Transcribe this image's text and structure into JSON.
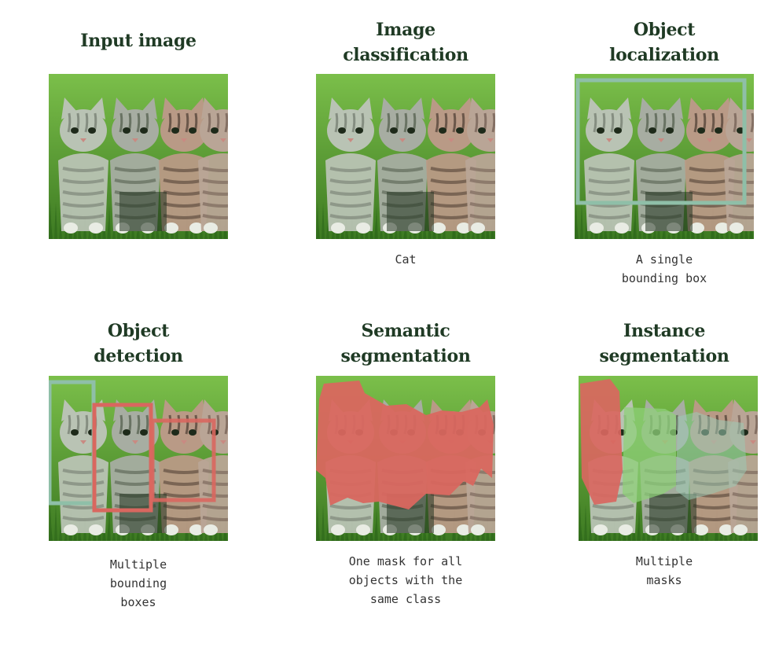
{
  "panels": [
    {
      "key": "input",
      "title_lines": [
        "Input image"
      ],
      "caption_lines": []
    },
    {
      "key": "classification",
      "title_lines": [
        "Image",
        "classification"
      ],
      "caption_lines": [
        "Cat"
      ]
    },
    {
      "key": "localization",
      "title_lines": [
        "Object",
        "localization"
      ],
      "caption_lines": [
        "A single",
        "bounding box"
      ]
    },
    {
      "key": "detection",
      "title_lines": [
        "Object",
        "detection"
      ],
      "caption_lines": [
        "Multiple",
        "bounding",
        "boxes"
      ]
    },
    {
      "key": "semantic",
      "title_lines": [
        "Semantic",
        "segmentation"
      ],
      "caption_lines": [
        "One mask for all",
        "objects with the",
        "same class"
      ]
    },
    {
      "key": "instance",
      "title_lines": [
        "Instance",
        "segmentation"
      ],
      "caption_lines": [
        "Multiple",
        "masks"
      ]
    }
  ],
  "colors": {
    "title": "#1f3a24",
    "caption": "#333333",
    "grass_light": "#7bbf4a",
    "grass_dark": "#3d7a22",
    "box_teal": "#8fbfa8",
    "box_red": "#d9675f",
    "mask_red": "#d9675f",
    "mask_green": "#8fd07a",
    "mask_teal": "#9ccab4"
  }
}
